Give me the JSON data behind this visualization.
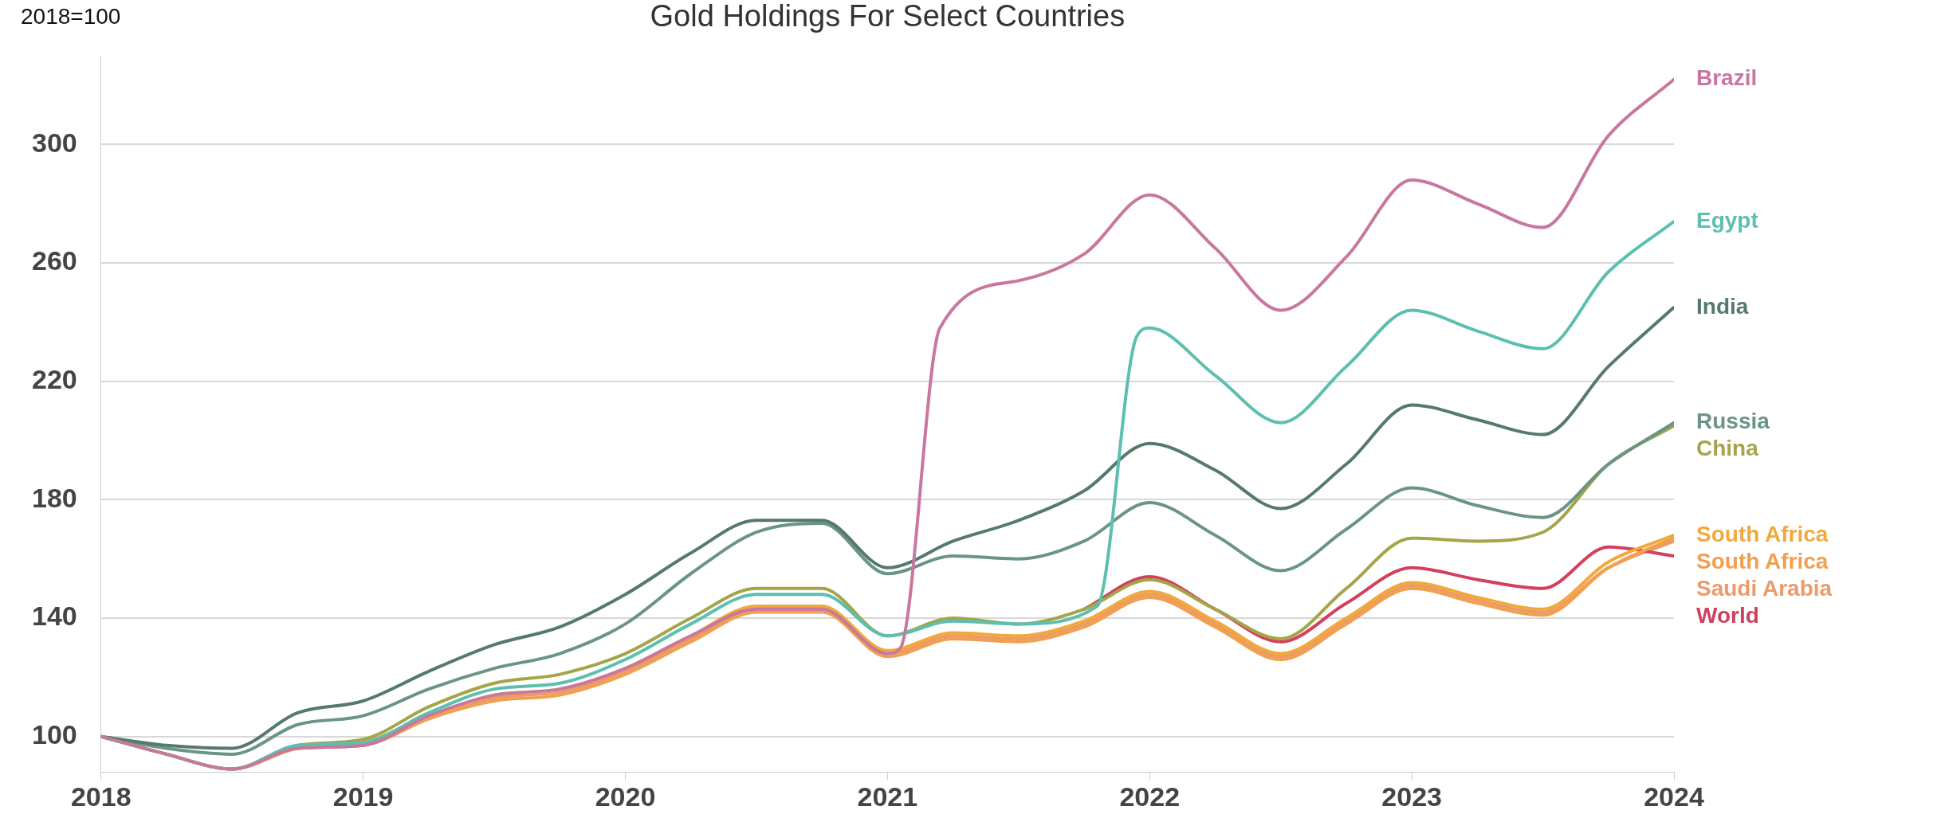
{
  "chart_data": {
    "type": "line",
    "title": "Gold Holdings For Select Countries",
    "ylabel": "2018=100",
    "x": [
      2018,
      2018.25,
      2018.5,
      2018.75,
      2019,
      2019.25,
      2019.5,
      2019.75,
      2020,
      2020.25,
      2020.5,
      2020.75,
      2021,
      2021.25,
      2021.5,
      2021.75,
      2022,
      2022.25,
      2022.5,
      2022.75,
      2023,
      2023.25,
      2023.5,
      2023.75,
      2024
    ],
    "xlim": [
      2018,
      2024
    ],
    "xticks": [
      2018,
      2019,
      2020,
      2021,
      2022,
      2023,
      2024
    ],
    "ylim": [
      88,
      330
    ],
    "yticks": [
      100,
      140,
      180,
      220,
      260,
      300
    ],
    "grid": "y",
    "legend": false,
    "marker": "none",
    "line_style": "solid",
    "series": [
      {
        "name": "Brazil",
        "color": "#c8779f",
        "x": [
          2018,
          2018.25,
          2018.5,
          2018.75,
          2019,
          2019.25,
          2019.5,
          2019.75,
          2020,
          2020.25,
          2020.5,
          2020.75,
          2021,
          2021.05,
          2021.2,
          2021.5,
          2021.75,
          2022,
          2022.25,
          2022.5,
          2022.75,
          2023,
          2023.25,
          2023.5,
          2023.75,
          2024
        ],
        "values": [
          100,
          94,
          89,
          96,
          97,
          107,
          114,
          116,
          123,
          134,
          143,
          143,
          128,
          130,
          238,
          254,
          263,
          283,
          265,
          244,
          262,
          288,
          280,
          272,
          303,
          322
        ]
      },
      {
        "name": "Egypt",
        "color": "#5cbfb0",
        "x": [
          2018,
          2018.25,
          2018.5,
          2018.75,
          2019,
          2019.25,
          2019.5,
          2019.75,
          2020,
          2020.25,
          2020.5,
          2020.75,
          2021,
          2021.25,
          2021.5,
          2021.8,
          2021.95,
          2022,
          2022.25,
          2022.5,
          2022.75,
          2023,
          2023.25,
          2023.5,
          2023.75,
          2024
        ],
        "values": [
          100,
          94,
          89,
          97,
          98,
          108,
          116,
          118,
          126,
          138,
          148,
          148,
          134,
          139,
          138,
          144,
          235,
          238,
          222,
          206,
          225,
          244,
          237,
          231,
          257,
          274
        ]
      },
      {
        "name": "India",
        "color": "#557a6c",
        "values": [
          100,
          97,
          96,
          108,
          112,
          122,
          131,
          137,
          148,
          162,
          173,
          173,
          157,
          166,
          173,
          183,
          199,
          190,
          177,
          192,
          212,
          207,
          202,
          225,
          245
        ]
      },
      {
        "name": "Russia",
        "color": "#6a9585",
        "values": [
          100,
          96,
          94,
          104,
          107,
          116,
          123,
          128,
          138,
          155,
          169,
          172,
          155,
          161,
          160,
          166,
          179,
          168,
          156,
          170,
          184,
          178,
          174,
          192,
          206
        ]
      },
      {
        "name": "China",
        "color": "#a3a648",
        "values": [
          100,
          94,
          89,
          97,
          99,
          110,
          118,
          121,
          128,
          140,
          150,
          150,
          134,
          140,
          138,
          143,
          153,
          143,
          133,
          150,
          167,
          166,
          169,
          192,
          205
        ]
      },
      {
        "name": "South Africa",
        "color": "#f2a93b",
        "values": [
          100,
          94,
          89,
          96,
          98,
          107,
          114,
          116,
          123,
          134,
          144,
          144,
          129,
          135,
          134,
          139,
          149,
          139,
          128,
          140,
          152,
          147,
          143,
          159,
          168
        ]
      },
      {
        "name": "South Africa",
        "color": "#f0a050",
        "values": [
          100,
          94,
          89,
          96,
          97,
          106,
          112,
          114,
          121,
          132,
          142,
          142,
          127,
          133,
          132,
          137,
          147,
          137,
          126,
          138,
          150,
          145,
          141,
          157,
          167
        ]
      },
      {
        "name": "World",
        "color": "#d33f5c",
        "values": [
          null,
          null,
          null,
          null,
          null,
          null,
          null,
          null,
          null,
          null,
          null,
          null,
          null,
          null,
          null,
          143,
          154,
          143,
          132,
          145,
          157,
          153,
          150,
          164,
          161
        ]
      },
      {
        "name": "Saudi Arabia",
        "color": "#ec9a6a",
        "values": [
          100,
          94,
          89,
          96,
          97,
          106,
          113,
          115,
          122,
          133,
          143,
          143,
          128,
          134,
          133,
          138,
          148,
          138,
          127,
          139,
          151,
          146,
          142,
          157,
          166
        ]
      }
    ]
  }
}
